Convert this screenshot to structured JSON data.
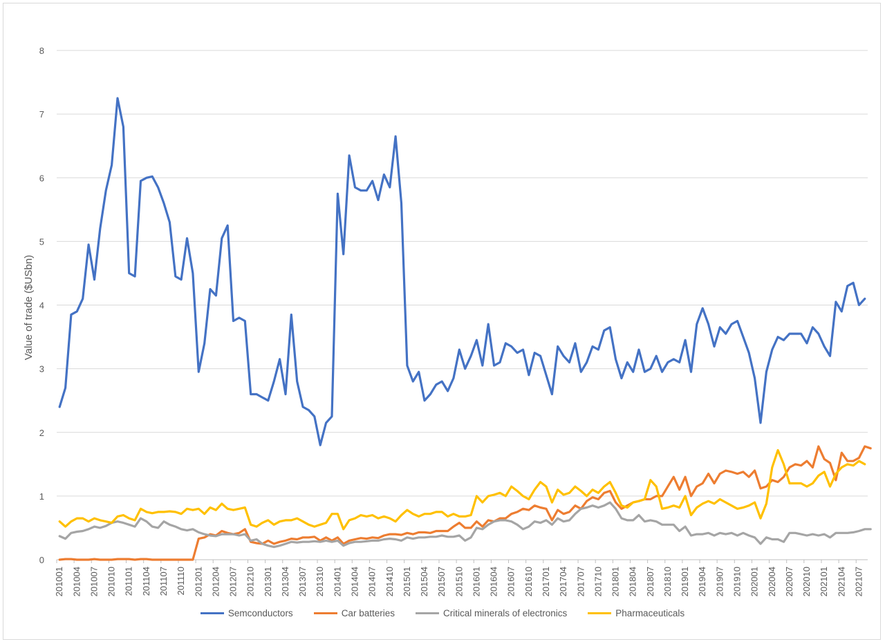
{
  "chart_data": {
    "type": "line",
    "title": "",
    "xlabel": "",
    "ylabel": "Value of trade ($USbn)",
    "ylim": [
      0,
      8
    ],
    "yticks": [
      0,
      1,
      2,
      3,
      4,
      5,
      6,
      7,
      8
    ],
    "grid": true,
    "legend_position": "bottom",
    "x_start": "2010-01",
    "x_end": "2021-09",
    "xtick_labels": [
      "201001",
      "201004",
      "201007",
      "201010",
      "201101",
      "201104",
      "201107",
      "201110",
      "201201",
      "201204",
      "201207",
      "201210",
      "201301",
      "201304",
      "201307",
      "201310",
      "201401",
      "201404",
      "201407",
      "201410",
      "201501",
      "201504",
      "201507",
      "201510",
      "201601",
      "201604",
      "201607",
      "201610",
      "201701",
      "201704",
      "201707",
      "201710",
      "201801",
      "201804",
      "201807",
      "201810",
      "201901",
      "201904",
      "201907",
      "201910",
      "202001",
      "202004",
      "202007",
      "202010",
      "202101",
      "202104",
      "202107"
    ],
    "series": [
      {
        "name": "Semconductors",
        "color": "#4472C4",
        "values": [
          2.4,
          2.7,
          3.85,
          3.9,
          4.1,
          4.95,
          4.4,
          5.2,
          5.8,
          6.2,
          7.25,
          6.8,
          4.5,
          4.45,
          5.95,
          6.0,
          6.02,
          5.85,
          5.6,
          5.3,
          4.45,
          4.4,
          5.05,
          4.5,
          2.95,
          3.4,
          4.25,
          4.15,
          5.05,
          5.25,
          3.75,
          3.8,
          3.75,
          2.6,
          2.6,
          2.55,
          2.5,
          2.8,
          3.15,
          2.6,
          3.85,
          2.8,
          2.4,
          2.35,
          2.25,
          1.8,
          2.15,
          2.25,
          5.75,
          4.8,
          6.35,
          5.85,
          5.8,
          5.8,
          5.95,
          5.65,
          6.05,
          5.85,
          6.65,
          5.6,
          3.05,
          2.8,
          2.95,
          2.5,
          2.6,
          2.75,
          2.8,
          2.65,
          2.85,
          3.3,
          3.0,
          3.2,
          3.45,
          3.05,
          3.7,
          3.05,
          3.1,
          3.4,
          3.35,
          3.25,
          3.3,
          2.9,
          3.25,
          3.2,
          2.9,
          2.6,
          3.35,
          3.2,
          3.1,
          3.4,
          2.95,
          3.1,
          3.35,
          3.3,
          3.6,
          3.65,
          3.15,
          2.85,
          3.1,
          2.95,
          3.3,
          2.95,
          3.0,
          3.2,
          2.95,
          3.1,
          3.15,
          3.1,
          3.45,
          2.95,
          3.7,
          3.95,
          3.7,
          3.35,
          3.65,
          3.55,
          3.7,
          3.75,
          3.5,
          3.25,
          2.85,
          2.15,
          2.95,
          3.3,
          3.5,
          3.45,
          3.55,
          3.55,
          3.55,
          3.4,
          3.65,
          3.55,
          3.35,
          3.2,
          4.05,
          3.9,
          4.3,
          4.35,
          4.0,
          4.1
        ]
      },
      {
        "name": "Car batteries",
        "color": "#ED7D31",
        "values": [
          0,
          0.01,
          0.01,
          0,
          0,
          0,
          0.01,
          0,
          0,
          0,
          0.01,
          0.01,
          0.01,
          0,
          0.01,
          0.01,
          0,
          0,
          0,
          0,
          0,
          0,
          0,
          0,
          0.33,
          0.35,
          0.4,
          0.38,
          0.45,
          0.42,
          0.4,
          0.42,
          0.48,
          0.28,
          0.26,
          0.25,
          0.3,
          0.25,
          0.28,
          0.3,
          0.33,
          0.32,
          0.35,
          0.35,
          0.36,
          0.3,
          0.35,
          0.3,
          0.35,
          0.25,
          0.3,
          0.32,
          0.34,
          0.33,
          0.35,
          0.34,
          0.38,
          0.4,
          0.4,
          0.39,
          0.42,
          0.4,
          0.43,
          0.43,
          0.42,
          0.45,
          0.45,
          0.45,
          0.52,
          0.58,
          0.5,
          0.5,
          0.6,
          0.52,
          0.62,
          0.6,
          0.65,
          0.65,
          0.72,
          0.75,
          0.8,
          0.78,
          0.85,
          0.82,
          0.8,
          0.62,
          0.78,
          0.72,
          0.75,
          0.85,
          0.8,
          0.92,
          0.98,
          0.95,
          1.05,
          1.08,
          0.9,
          0.8,
          0.85,
          0.9,
          0.92,
          0.95,
          0.95,
          1.0,
          1.0,
          1.15,
          1.3,
          1.1,
          1.3,
          1.0,
          1.15,
          1.2,
          1.35,
          1.2,
          1.35,
          1.4,
          1.38,
          1.35,
          1.38,
          1.3,
          1.4,
          1.12,
          1.15,
          1.25,
          1.22,
          1.3,
          1.45,
          1.5,
          1.48,
          1.55,
          1.45,
          1.78,
          1.58,
          1.52,
          1.25,
          1.68,
          1.55,
          1.55,
          1.6,
          1.78,
          1.75
        ]
      },
      {
        "name": "Critical minerals of electronics",
        "color": "#A5A5A5",
        "values": [
          0.37,
          0.33,
          0.42,
          0.44,
          0.45,
          0.48,
          0.52,
          0.5,
          0.53,
          0.58,
          0.6,
          0.58,
          0.55,
          0.52,
          0.65,
          0.6,
          0.52,
          0.5,
          0.6,
          0.55,
          0.52,
          0.48,
          0.46,
          0.48,
          0.43,
          0.4,
          0.38,
          0.37,
          0.4,
          0.4,
          0.4,
          0.38,
          0.4,
          0.3,
          0.32,
          0.25,
          0.22,
          0.2,
          0.22,
          0.25,
          0.28,
          0.27,
          0.28,
          0.28,
          0.29,
          0.28,
          0.3,
          0.28,
          0.3,
          0.22,
          0.26,
          0.28,
          0.28,
          0.29,
          0.3,
          0.3,
          0.32,
          0.33,
          0.32,
          0.3,
          0.35,
          0.33,
          0.35,
          0.35,
          0.36,
          0.36,
          0.38,
          0.36,
          0.36,
          0.38,
          0.3,
          0.35,
          0.5,
          0.48,
          0.55,
          0.6,
          0.62,
          0.62,
          0.6,
          0.55,
          0.48,
          0.52,
          0.6,
          0.58,
          0.62,
          0.55,
          0.65,
          0.6,
          0.62,
          0.72,
          0.8,
          0.82,
          0.85,
          0.82,
          0.85,
          0.9,
          0.8,
          0.65,
          0.62,
          0.62,
          0.7,
          0.6,
          0.62,
          0.6,
          0.55,
          0.55,
          0.55,
          0.45,
          0.52,
          0.38,
          0.4,
          0.4,
          0.42,
          0.38,
          0.42,
          0.4,
          0.42,
          0.38,
          0.42,
          0.38,
          0.35,
          0.25,
          0.35,
          0.32,
          0.32,
          0.28,
          0.42,
          0.42,
          0.4,
          0.38,
          0.4,
          0.38,
          0.4,
          0.35,
          0.42,
          0.42,
          0.42,
          0.43,
          0.45,
          0.48,
          0.48
        ]
      },
      {
        "name": "Pharmaceuticals",
        "color": "#FFC000",
        "values": [
          0.6,
          0.52,
          0.6,
          0.65,
          0.65,
          0.6,
          0.65,
          0.62,
          0.6,
          0.58,
          0.68,
          0.7,
          0.65,
          0.62,
          0.8,
          0.75,
          0.73,
          0.75,
          0.75,
          0.76,
          0.75,
          0.72,
          0.8,
          0.78,
          0.8,
          0.72,
          0.82,
          0.78,
          0.88,
          0.8,
          0.78,
          0.8,
          0.82,
          0.55,
          0.52,
          0.58,
          0.62,
          0.55,
          0.6,
          0.62,
          0.62,
          0.65,
          0.6,
          0.55,
          0.52,
          0.55,
          0.58,
          0.72,
          0.72,
          0.48,
          0.62,
          0.65,
          0.7,
          0.68,
          0.7,
          0.65,
          0.68,
          0.65,
          0.6,
          0.7,
          0.78,
          0.72,
          0.68,
          0.72,
          0.72,
          0.75,
          0.75,
          0.68,
          0.72,
          0.68,
          0.68,
          0.7,
          1.0,
          0.9,
          1.0,
          1.02,
          1.05,
          1.0,
          1.15,
          1.08,
          1.0,
          0.95,
          1.1,
          1.22,
          1.15,
          0.9,
          1.1,
          1.02,
          1.05,
          1.15,
          1.08,
          1.0,
          1.1,
          1.05,
          1.15,
          1.22,
          1.05,
          0.85,
          0.82,
          0.9,
          0.92,
          0.95,
          1.25,
          1.15,
          0.8,
          0.82,
          0.85,
          0.82,
          1.0,
          0.7,
          0.82,
          0.88,
          0.92,
          0.88,
          0.95,
          0.9,
          0.85,
          0.8,
          0.82,
          0.85,
          0.9,
          0.65,
          0.88,
          1.45,
          1.72,
          1.5,
          1.2,
          1.2,
          1.2,
          1.15,
          1.2,
          1.32,
          1.38,
          1.15,
          1.35,
          1.45,
          1.5,
          1.48,
          1.55,
          1.5
        ]
      }
    ]
  }
}
